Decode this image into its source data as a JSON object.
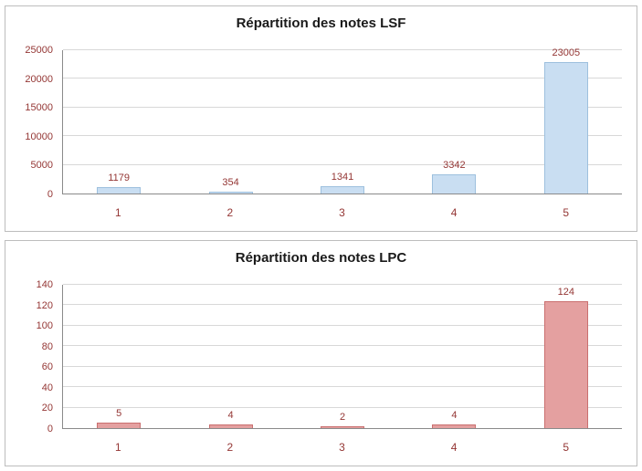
{
  "chart_data": [
    {
      "type": "bar",
      "title": "Répartition des notes LSF",
      "categories": [
        "1",
        "2",
        "3",
        "4",
        "5"
      ],
      "values": [
        1179,
        354,
        1341,
        3342,
        23005
      ],
      "data_labels": [
        "1179",
        "354",
        "1341",
        "3342",
        "23005"
      ],
      "xlabel": "",
      "ylabel": "",
      "ylim": [
        0,
        25000
      ],
      "ytick_step": 5000,
      "grid": "on",
      "legend": "none",
      "bar_fill": "#c9def2",
      "bar_border": "#9dc0de"
    },
    {
      "type": "bar",
      "title": "Répartition des notes LPC",
      "categories": [
        "1",
        "2",
        "3",
        "4",
        "5"
      ],
      "values": [
        5,
        4,
        2,
        4,
        124
      ],
      "data_labels": [
        "5",
        "4",
        "2",
        "4",
        "124"
      ],
      "xlabel": "",
      "ylabel": "",
      "ylim": [
        0,
        140
      ],
      "ytick_step": 20,
      "grid": "on",
      "legend": "none",
      "bar_fill": "#e4a0a0",
      "bar_border": "#ca6f6f"
    }
  ],
  "colors": {
    "text_title": "#1a1a1a",
    "text_labels": "#943634",
    "gridline": "#d8d8d8",
    "axis_line": "#8a8a8a",
    "panel_border": "#bdbdbd",
    "background": "#ffffff"
  }
}
